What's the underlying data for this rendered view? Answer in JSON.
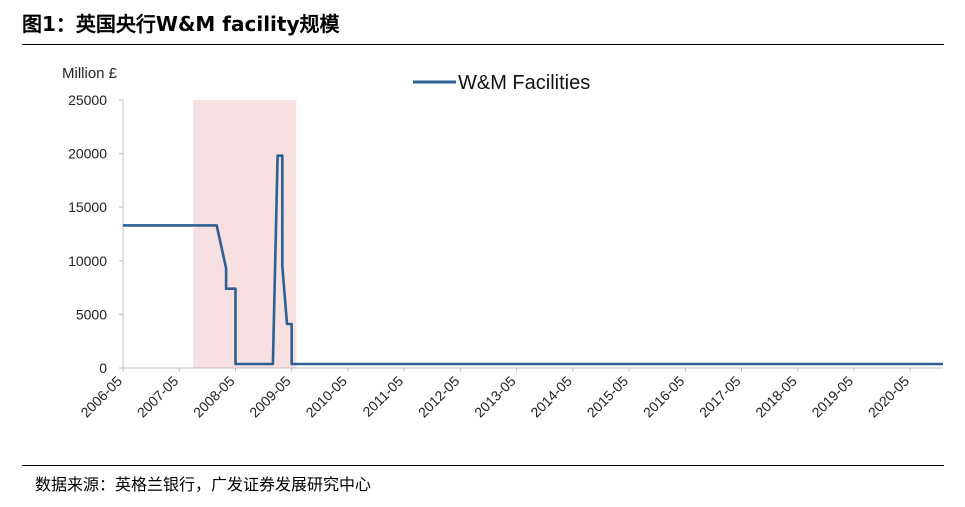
{
  "figure": {
    "title": "图1：英国央行W&M facility规模",
    "source": "数据来源：英格兰银行，广发证券发展研究中心"
  },
  "colors": {
    "series": "#2c5f93",
    "shade": "#f8dfe1",
    "axis": "#bfbfbf"
  },
  "chart_data": {
    "type": "line",
    "title": "",
    "ylabel": "Million £",
    "xlabel": "",
    "ylim": [
      0,
      25000
    ],
    "yticks": [
      0,
      5000,
      10000,
      15000,
      20000,
      25000
    ],
    "xlim": [
      "2006-05",
      "2020-12"
    ],
    "xticks": [
      "2006-05",
      "2007-05",
      "2008-05",
      "2009-05",
      "2010-05",
      "2011-05",
      "2012-05",
      "2013-05",
      "2014-05",
      "2015-05",
      "2016-05",
      "2017-05",
      "2018-05",
      "2019-05",
      "2020-05"
    ],
    "legend": {
      "position": "top-center",
      "entries": [
        "W&M Facilities"
      ]
    },
    "grid": false,
    "shaded_period": {
      "start": "2007-08",
      "end": "2009-06"
    },
    "series": [
      {
        "name": "W&M Facilities",
        "points": [
          [
            "2006-05",
            13300
          ],
          [
            "2008-01",
            13300
          ],
          [
            "2008-03",
            9300
          ],
          [
            "2008-03",
            7400
          ],
          [
            "2008-05",
            7400
          ],
          [
            "2008-05",
            370
          ],
          [
            "2009-01",
            370
          ],
          [
            "2009-02",
            19800
          ],
          [
            "2009-03",
            19800
          ],
          [
            "2009-03",
            9500
          ],
          [
            "2009-04",
            4100
          ],
          [
            "2009-05",
            4100
          ],
          [
            "2009-05",
            370
          ],
          [
            "2020-12",
            370
          ]
        ]
      }
    ]
  }
}
